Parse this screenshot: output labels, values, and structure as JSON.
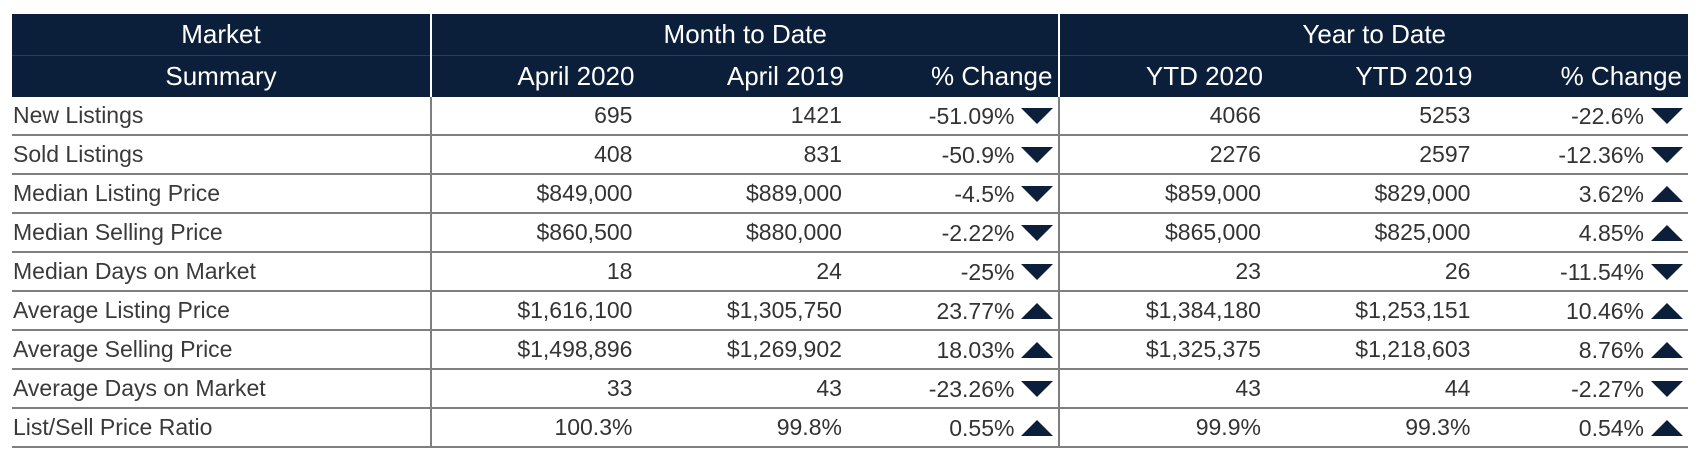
{
  "header": {
    "market": "Market",
    "summary": "Summary",
    "mtd": "Month to Date",
    "ytd": "Year to Date",
    "cols": [
      "April 2020",
      "April 2019",
      "% Change",
      "YTD 2020",
      "YTD 2019",
      "% Change"
    ]
  },
  "colors": {
    "header_bg": "#0c1f3a",
    "arrow": "#0c1f3a"
  },
  "rows": [
    {
      "label": "New Listings",
      "mtd_2020": "695",
      "mtd_2019": "1421",
      "mtd_change": "-51.09%",
      "mtd_dir": "down",
      "ytd_2020": "4066",
      "ytd_2019": "5253",
      "ytd_change": "-22.6%",
      "ytd_dir": "down"
    },
    {
      "label": "Sold Listings",
      "mtd_2020": "408",
      "mtd_2019": "831",
      "mtd_change": "-50.9%",
      "mtd_dir": "down",
      "ytd_2020": "2276",
      "ytd_2019": "2597",
      "ytd_change": "-12.36%",
      "ytd_dir": "down"
    },
    {
      "label": "Median Listing Price",
      "mtd_2020": "$849,000",
      "mtd_2019": "$889,000",
      "mtd_change": "-4.5%",
      "mtd_dir": "down",
      "ytd_2020": "$859,000",
      "ytd_2019": "$829,000",
      "ytd_change": "3.62%",
      "ytd_dir": "up"
    },
    {
      "label": "Median Selling Price",
      "mtd_2020": "$860,500",
      "mtd_2019": "$880,000",
      "mtd_change": "-2.22%",
      "mtd_dir": "down",
      "ytd_2020": "$865,000",
      "ytd_2019": "$825,000",
      "ytd_change": "4.85%",
      "ytd_dir": "up"
    },
    {
      "label": "Median Days on Market",
      "mtd_2020": "18",
      "mtd_2019": "24",
      "mtd_change": "-25%",
      "mtd_dir": "down",
      "ytd_2020": "23",
      "ytd_2019": "26",
      "ytd_change": "-11.54%",
      "ytd_dir": "down"
    },
    {
      "label": "Average Listing Price",
      "mtd_2020": "$1,616,100",
      "mtd_2019": "$1,305,750",
      "mtd_change": "23.77%",
      "mtd_dir": "up",
      "ytd_2020": "$1,384,180",
      "ytd_2019": "$1,253,151",
      "ytd_change": "10.46%",
      "ytd_dir": "up"
    },
    {
      "label": "Average Selling Price",
      "mtd_2020": "$1,498,896",
      "mtd_2019": "$1,269,902",
      "mtd_change": "18.03%",
      "mtd_dir": "up",
      "ytd_2020": "$1,325,375",
      "ytd_2019": "$1,218,603",
      "ytd_change": "8.76%",
      "ytd_dir": "up"
    },
    {
      "label": "Average Days on Market",
      "mtd_2020": "33",
      "mtd_2019": "43",
      "mtd_change": "-23.26%",
      "mtd_dir": "down",
      "ytd_2020": "43",
      "ytd_2019": "44",
      "ytd_change": "-2.27%",
      "ytd_dir": "down"
    },
    {
      "label": "List/Sell Price Ratio",
      "mtd_2020": "100.3%",
      "mtd_2019": "99.8%",
      "mtd_change": "0.55%",
      "mtd_dir": "up",
      "ytd_2020": "99.9%",
      "ytd_2019": "99.3%",
      "ytd_change": "0.54%",
      "ytd_dir": "up"
    }
  ]
}
